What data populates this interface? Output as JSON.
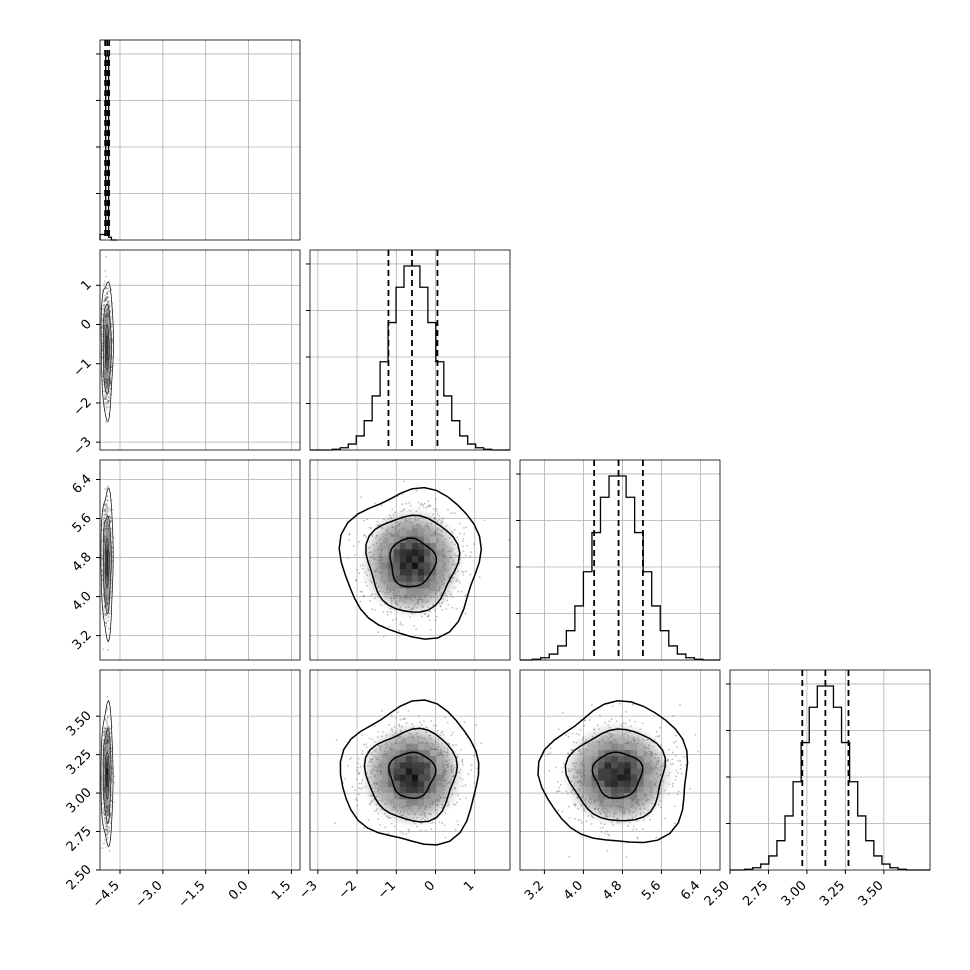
{
  "chart_data": {
    "type": "corner",
    "grid": true,
    "parameters": [
      {
        "range": [
          -5.2,
          1.8
        ],
        "ticks": [
          -4.5,
          -3.0,
          -1.5,
          0.0,
          1.5
        ],
        "tick_labels": [
          "−4.5",
          "−3.0",
          "−1.5",
          "0.0",
          "1.5"
        ],
        "mean": -4.95,
        "sd": 0.07,
        "quantiles": [
          -5.02,
          -4.95,
          -4.88
        ]
      },
      {
        "range": [
          -3.2,
          1.9
        ],
        "ticks": [
          -3,
          -2,
          -1,
          0,
          1
        ],
        "tick_labels": [
          "−3",
          "−2",
          "−1",
          "0",
          "1"
        ],
        "mean": -0.6,
        "sd": 0.58,
        "quantiles": [
          -1.2,
          -0.6,
          0.05
        ]
      },
      {
        "range": [
          2.7,
          6.8
        ],
        "ticks": [
          3.2,
          4.0,
          4.8,
          5.6,
          6.4
        ],
        "tick_labels": [
          "3.2",
          "4.0",
          "4.8",
          "5.6",
          "6.4"
        ],
        "mean": 4.7,
        "sd": 0.5,
        "quantiles": [
          4.22,
          4.72,
          5.22
        ]
      },
      {
        "range": [
          2.5,
          3.8
        ],
        "ticks": [
          2.5,
          2.75,
          3.0,
          3.25,
          3.5
        ],
        "tick_labels": [
          "2.50",
          "2.75",
          "3.00",
          "3.25",
          "3.50"
        ],
        "mean": 3.12,
        "sd": 0.15,
        "quantiles": [
          2.97,
          3.12,
          3.27
        ]
      }
    ],
    "histograms": [
      {
        "param": 0,
        "bin_edges": [
          -5.2,
          -5.0,
          -4.9,
          -4.8
        ],
        "counts": [
          30,
          1000,
          15
        ]
      },
      {
        "param": 1,
        "bins": 20
      },
      {
        "param": 2,
        "bins": 20
      },
      {
        "param": 3,
        "bins": 20
      }
    ],
    "contour_levels": [
      0.39,
      0.86,
      0.99
    ],
    "colors": {
      "line": "#000000",
      "grid": "#b0b0b0",
      "points": "#444444"
    }
  }
}
